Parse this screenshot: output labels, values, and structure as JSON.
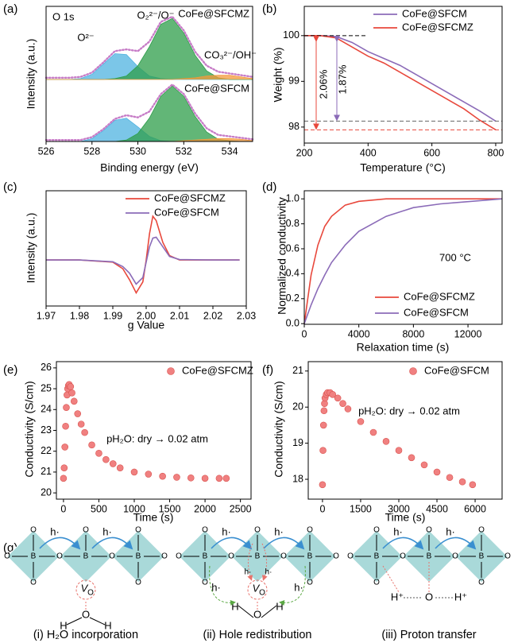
{
  "chart_data": [
    {
      "type": "area",
      "panel_label": "(a)",
      "xlim": [
        526,
        535
      ],
      "ylim": [
        0,
        0.85
      ],
      "x": [
        526,
        526.5,
        527,
        527.5,
        528,
        528.5,
        529,
        529.5,
        530,
        530.5,
        531,
        531.5,
        532,
        532.5,
        533,
        533.5,
        534,
        534.5,
        535
      ],
      "annotations": [
        "O 1s",
        "CoFe@SFCMZ",
        "O²⁻",
        "O₂²⁻/O⁻",
        "CO₃²⁻/OH⁻"
      ],
      "series": [
        {
          "style": "area",
          "color": "#4fb3e0",
          "values": [
            0,
            0,
            0,
            0.01,
            0.06,
            0.18,
            0.3,
            0.29,
            0.15,
            0.04,
            0.01,
            0,
            0,
            0,
            0,
            0,
            0,
            0,
            0
          ]
        },
        {
          "style": "area",
          "color": "#2e9e4a",
          "values": [
            0,
            0,
            0,
            0,
            0,
            0,
            0.01,
            0.04,
            0.16,
            0.38,
            0.64,
            0.71,
            0.54,
            0.28,
            0.1,
            0.02,
            0,
            0,
            0
          ]
        },
        {
          "style": "area",
          "color": "#f39a3c",
          "values": [
            0,
            0,
            0,
            0,
            0,
            0,
            0,
            0,
            0,
            0,
            0,
            0,
            0.01,
            0.02,
            0.04,
            0.05,
            0.05,
            0.03,
            0.01
          ]
        },
        {
          "style": "dotted",
          "color": "#c77dc7",
          "values": [
            0.02,
            0.02,
            0.02,
            0.03,
            0.08,
            0.2,
            0.33,
            0.35,
            0.33,
            0.44,
            0.67,
            0.73,
            0.57,
            0.32,
            0.16,
            0.09,
            0.07,
            0.05,
            0.03
          ]
        }
      ]
    },
    {
      "type": "area",
      "xlim": [
        526,
        535
      ],
      "ylim": [
        0,
        0.85
      ],
      "xticks": [
        526,
        528,
        530,
        532,
        534
      ],
      "x_label": "Binding energy (eV)",
      "y_label": "Intensity (a.u.)",
      "x": [
        526,
        526.5,
        527,
        527.5,
        528,
        528.5,
        529,
        529.5,
        530,
        530.5,
        531,
        531.5,
        532,
        532.5,
        533,
        533.5,
        534,
        534.5,
        535
      ],
      "annotations": [
        "CoFe@SFCM"
      ],
      "series": [
        {
          "style": "area",
          "color": "#4fb3e0",
          "values": [
            0,
            0,
            0,
            0,
            0.04,
            0.15,
            0.29,
            0.32,
            0.2,
            0.07,
            0.01,
            0,
            0,
            0,
            0,
            0,
            0,
            0,
            0
          ]
        },
        {
          "style": "area",
          "color": "#2e9e4a",
          "values": [
            0,
            0,
            0,
            0,
            0,
            0,
            0,
            0.02,
            0.11,
            0.32,
            0.62,
            0.76,
            0.62,
            0.34,
            0.13,
            0.03,
            0.01,
            0,
            0
          ]
        },
        {
          "style": "area",
          "color": "#f39a3c",
          "values": [
            0,
            0,
            0,
            0,
            0,
            0,
            0,
            0,
            0,
            0,
            0,
            0,
            0.01,
            0.02,
            0.03,
            0.04,
            0.04,
            0.03,
            0.01
          ]
        },
        {
          "style": "dotted",
          "color": "#c77dc7",
          "values": [
            0.02,
            0.02,
            0.02,
            0.02,
            0.06,
            0.17,
            0.31,
            0.36,
            0.33,
            0.41,
            0.65,
            0.78,
            0.65,
            0.38,
            0.18,
            0.09,
            0.07,
            0.05,
            0.03
          ]
        }
      ]
    },
    {
      "type": "line",
      "panel_label": "(b)",
      "xlim": [
        200,
        820
      ],
      "ylim": [
        97.65,
        100.64
      ],
      "xticks": [
        200,
        400,
        600,
        800
      ],
      "yticks": [
        98,
        99,
        100
      ],
      "x_label": "Temperature (°C)",
      "y_label": "Weight (%)",
      "legend": "upper right",
      "x": [
        200,
        250,
        300,
        350,
        400,
        450,
        500,
        550,
        600,
        650,
        700,
        750,
        800
      ],
      "annotations": [
        "2.06%",
        "1.87%"
      ],
      "series": [
        {
          "name": "CoFe@SFCM",
          "color": "#8b6bb8",
          "values": [
            100,
            100,
            99.98,
            99.85,
            99.65,
            99.5,
            99.35,
            99.15,
            98.95,
            98.75,
            98.55,
            98.35,
            98.13
          ]
        },
        {
          "name": "CoFe@SFCMZ",
          "color": "#e8483c",
          "values": [
            100,
            100,
            99.95,
            99.75,
            99.55,
            99.4,
            99.2,
            99.0,
            98.8,
            98.6,
            98.4,
            98.15,
            97.94
          ]
        }
      ]
    },
    {
      "type": "line",
      "panel_label": "(c)",
      "xlim": [
        1.97,
        2.03
      ],
      "ylim": [
        -1.05,
        1.58
      ],
      "xticks": [
        1.97,
        1.98,
        1.99,
        {
          "value": 2,
          "label": "2.00"
        },
        2.01,
        2.02,
        2.03
      ],
      "x_label": "g Value",
      "y_label": "Intensity (a.u.)",
      "legend": "upper right",
      "x": [
        1.97,
        1.98,
        1.99,
        1.993,
        1.995,
        1.997,
        1.999,
        2.0,
        2.001,
        2.002,
        2.003,
        2.005,
        2.007,
        2.01,
        2.02,
        2.028
      ],
      "series": [
        {
          "name": "CoFe@SFCMZ",
          "color": "#e8483c",
          "values": [
            0,
            0,
            -0.05,
            -0.2,
            -0.45,
            -0.75,
            -0.5,
            0,
            0.6,
            1.0,
            0.9,
            0.4,
            0.1,
            0,
            0,
            0
          ]
        },
        {
          "name": "CoFe@SFCM",
          "color": "#8b6bb8",
          "values": [
            0,
            0,
            -0.04,
            -0.15,
            -0.3,
            -0.55,
            -0.4,
            -0.05,
            0.3,
            0.5,
            0.52,
            0.3,
            0.08,
            0.01,
            0,
            0
          ]
        }
      ]
    },
    {
      "type": "line",
      "panel_label": "(d)",
      "xlim": [
        0,
        14500
      ],
      "ylim": [
        -0.005,
        1.065
      ],
      "xticks": [
        0,
        4000,
        8000,
        12000
      ],
      "yticks": [
        {
          "value": 0,
          "label": "0.0"
        },
        0.2,
        0.4,
        0.6,
        0.8,
        {
          "value": 1,
          "label": "1.0"
        }
      ],
      "x_label": "Relaxation time (s)",
      "y_label": "Normalized conductivity",
      "legend": "lower right",
      "x": [
        0,
        500,
        1000,
        1500,
        2000,
        3000,
        4000,
        6000,
        8000,
        10000,
        14500
      ],
      "annotations": [
        "700 °C"
      ],
      "series": [
        {
          "name": "CoFe@SFCMZ",
          "color": "#e8483c",
          "values": [
            0,
            0.39,
            0.63,
            0.78,
            0.86,
            0.95,
            0.98,
            1,
            1,
            1,
            1
          ]
        },
        {
          "name": "CoFe@SFCM",
          "color": "#8b6bb8",
          "values": [
            0,
            0.15,
            0.28,
            0.39,
            0.49,
            0.63,
            0.74,
            0.86,
            0.93,
            0.96,
            1
          ]
        }
      ]
    },
    {
      "type": "scatter",
      "panel_label": "(e)",
      "xlim": [
        -100,
        2650
      ],
      "ylim": [
        19.7,
        26.3
      ],
      "xticks": [
        0,
        500,
        1000,
        1500,
        2000,
        2500
      ],
      "yticks": [
        20,
        21,
        22,
        23,
        24,
        25,
        26
      ],
      "x_label": "Time (s)",
      "y_label": "Conductivity (S/cm)",
      "legend": "upper right",
      "x": [
        0,
        10,
        20,
        30,
        40,
        50,
        60,
        70,
        80,
        100,
        120,
        150,
        200,
        250,
        300,
        400,
        500,
        600,
        700,
        800,
        1000,
        1200,
        1400,
        1600,
        1800,
        2000,
        2200,
        2300
      ],
      "annotations": [
        "pH₂O: dry → 0.02 atm"
      ],
      "series": [
        {
          "name": "CoFe@SFCMZ",
          "color": "#f08080",
          "values": [
            20.7,
            21.2,
            22.2,
            23.2,
            24.1,
            24.7,
            25.0,
            25.15,
            25.2,
            25.1,
            24.8,
            24.4,
            23.8,
            23.3,
            22.9,
            22.3,
            21.9,
            21.6,
            21.4,
            21.2,
            21.0,
            20.9,
            20.8,
            20.75,
            20.72,
            20.7,
            20.7,
            20.7
          ]
        }
      ]
    },
    {
      "type": "scatter",
      "panel_label": "(f)",
      "xlim": [
        -560,
        7060
      ],
      "ylim": [
        17.45,
        21.26
      ],
      "xticks": [
        0,
        1500,
        3000,
        4500,
        6000
      ],
      "yticks": [
        18,
        19,
        20,
        21
      ],
      "x_label": "Time (s)",
      "y_label": "Conductivity (S/cm)",
      "legend": "upper right",
      "x": [
        0,
        20,
        40,
        60,
        80,
        100,
        150,
        200,
        300,
        400,
        600,
        800,
        1000,
        1500,
        2000,
        2500,
        3000,
        3500,
        4000,
        4500,
        5000,
        5500,
        5900
      ],
      "annotations": [
        "pH₂O: dry → 0.02 atm"
      ],
      "series": [
        {
          "name": "CoFe@SFCM",
          "color": "#f08080",
          "values": [
            17.85,
            18.8,
            19.5,
            19.9,
            20.1,
            20.25,
            20.35,
            20.4,
            20.4,
            20.35,
            20.25,
            20.1,
            19.95,
            19.6,
            19.3,
            19.05,
            18.8,
            18.6,
            18.4,
            18.2,
            18.05,
            17.93,
            17.85
          ]
        }
      ]
    }
  ],
  "diagram": {
    "panel_label": "(g)",
    "metal": "B",
    "oxygen": "O",
    "hole": "h·",
    "vacancy": "V",
    "hydrogen": "H",
    "proton": "H⁺",
    "captions": [
      "(i) H₂O incorporation",
      "(ii) Hole redistribution",
      "(iii) Proton transfer"
    ]
  }
}
